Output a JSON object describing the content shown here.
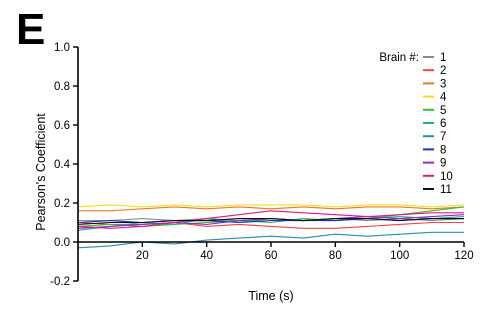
{
  "panel_label": "E",
  "chart_data": {
    "type": "line",
    "xlabel": "Time (s)",
    "ylabel": "Pearson's Coefficient",
    "xlim": [
      0,
      120
    ],
    "ylim": [
      -0.2,
      1.0
    ],
    "x_ticks": [
      20,
      40,
      60,
      80,
      100,
      120
    ],
    "x_tick_labels": [
      "20",
      "40",
      "60",
      "80",
      "100",
      "120"
    ],
    "y_ticks": [
      -0.2,
      0.0,
      0.2,
      0.4,
      0.6,
      0.8,
      1.0
    ],
    "y_tick_labels": [
      "-0.2",
      "0.0",
      "0.2",
      "0.4",
      "0.6",
      "0.8",
      "1.0"
    ],
    "legend_title": "Brain #:",
    "legend_position": "top-right",
    "x": [
      0,
      10,
      20,
      30,
      40,
      50,
      60,
      70,
      80,
      90,
      100,
      110,
      120
    ],
    "series": [
      {
        "name": "1",
        "color": "#8c8c8c",
        "values": [
          0.11,
          0.11,
          0.12,
          0.11,
          0.12,
          0.11,
          0.12,
          0.11,
          0.12,
          0.11,
          0.12,
          0.11,
          0.12
        ]
      },
      {
        "name": "2",
        "color": "#f0404a",
        "values": [
          0.1,
          0.09,
          0.09,
          0.1,
          0.08,
          0.09,
          0.08,
          0.07,
          0.07,
          0.08,
          0.09,
          0.1,
          0.1
        ]
      },
      {
        "name": "3",
        "color": "#f07820",
        "values": [
          0.16,
          0.16,
          0.17,
          0.18,
          0.17,
          0.18,
          0.17,
          0.18,
          0.17,
          0.18,
          0.18,
          0.17,
          0.18
        ]
      },
      {
        "name": "4",
        "color": "#f0e020",
        "values": [
          0.18,
          0.19,
          0.18,
          0.19,
          0.18,
          0.19,
          0.19,
          0.19,
          0.18,
          0.19,
          0.19,
          0.18,
          0.19
        ]
      },
      {
        "name": "5",
        "color": "#30c030",
        "values": [
          0.08,
          0.09,
          0.08,
          0.09,
          0.1,
          0.11,
          0.1,
          0.12,
          0.11,
          0.12,
          0.14,
          0.16,
          0.18
        ]
      },
      {
        "name": "6",
        "color": "#20b090",
        "values": [
          0.06,
          0.08,
          0.1,
          0.09,
          0.12,
          0.1,
          0.12,
          0.11,
          0.12,
          0.12,
          0.13,
          0.12,
          0.13
        ]
      },
      {
        "name": "7",
        "color": "#2a8ab8",
        "values": [
          -0.03,
          -0.02,
          0.0,
          -0.01,
          0.01,
          0.02,
          0.03,
          0.02,
          0.04,
          0.03,
          0.04,
          0.05,
          0.05
        ]
      },
      {
        "name": "8",
        "color": "#1830c8",
        "values": [
          0.1,
          0.11,
          0.1,
          0.11,
          0.11,
          0.1,
          0.11,
          0.11,
          0.11,
          0.12,
          0.11,
          0.12,
          0.12
        ]
      },
      {
        "name": "9",
        "color": "#9028d0",
        "values": [
          0.07,
          0.08,
          0.09,
          0.1,
          0.09,
          0.11,
          0.12,
          0.11,
          0.12,
          0.13,
          0.12,
          0.13,
          0.14
        ]
      },
      {
        "name": "10",
        "color": "#e01878",
        "values": [
          0.08,
          0.07,
          0.08,
          0.1,
          0.12,
          0.14,
          0.16,
          0.15,
          0.14,
          0.13,
          0.14,
          0.15,
          0.15
        ]
      },
      {
        "name": "11",
        "color": "#111111",
        "values": [
          0.09,
          0.1,
          0.1,
          0.11,
          0.11,
          0.12,
          0.12,
          0.11,
          0.12,
          0.12,
          0.11,
          0.12,
          0.12
        ]
      }
    ]
  }
}
